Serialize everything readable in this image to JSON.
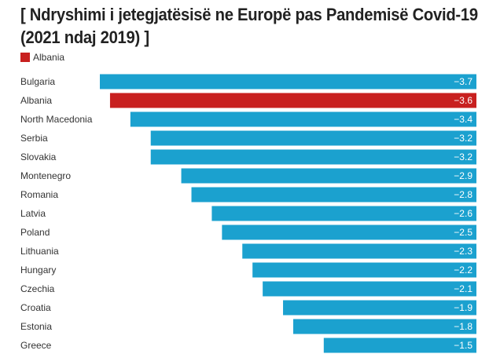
{
  "chart_data": {
    "type": "bar",
    "orientation": "horizontal",
    "title": "[ Ndryshimi i jetegjatësisë ne Europë pas Pandemisë Covid-19 (2021 ndaj 2019) ]",
    "legend": [
      {
        "label": "Albania",
        "color": "#c8201f"
      }
    ],
    "categories": [
      "Bulgaria",
      "Albania",
      "North Macedonia",
      "Serbia",
      "Slovakia",
      "Montenegro",
      "Romania",
      "Latvia",
      "Poland",
      "Lithuania",
      "Hungary",
      "Czechia",
      "Croatia",
      "Estonia",
      "Greece"
    ],
    "values": [
      -3.7,
      -3.6,
      -3.4,
      -3.2,
      -3.2,
      -2.9,
      -2.8,
      -2.6,
      -2.5,
      -2.3,
      -2.2,
      -2.1,
      -1.9,
      -1.8,
      -1.5
    ],
    "value_labels": [
      "−3.7",
      "−3.6",
      "−3.4",
      "−3.2",
      "−3.2",
      "−2.9",
      "−2.8",
      "−2.6",
      "−2.5",
      "−2.3",
      "−2.2",
      "−2.1",
      "−1.9",
      "−1.8",
      "−1.5"
    ],
    "highlight": "Albania",
    "colors": {
      "default": "#1ba1cf",
      "highlight": "#c8201f"
    },
    "xlim": [
      -3.7,
      0
    ],
    "grid": false
  }
}
